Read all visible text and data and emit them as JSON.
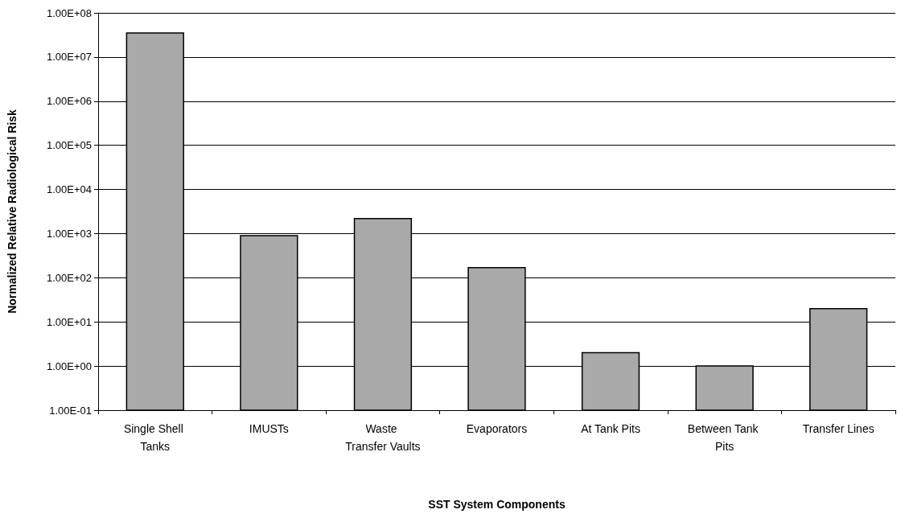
{
  "chart_data": {
    "type": "bar",
    "xlabel": "SST System Components",
    "ylabel": "Normalized Relative Radiological Risk",
    "categories": [
      "Single Shell Tanks",
      "IMUSTs",
      "Waste Transfer Vaults",
      "Evaporators",
      "At Tank Pits",
      "Between Tank Pits",
      "Transfer Lines"
    ],
    "values": [
      35000000,
      900,
      2200,
      170,
      2,
      1,
      20
    ],
    "color": "#a9a9a9",
    "log": true,
    "ylim": [
      0.1,
      100000000
    ],
    "yticks": [
      {
        "value": 0.1,
        "label": "1.00E-01"
      },
      {
        "value": 1,
        "label": "1.00E+00"
      },
      {
        "value": 10,
        "label": "1.00E+01"
      },
      {
        "value": 100,
        "label": "1.00E+02"
      },
      {
        "value": 1000,
        "label": "1.00E+03"
      },
      {
        "value": 10000,
        "label": "1.00E+04"
      },
      {
        "value": 100000,
        "label": "1.00E+05"
      },
      {
        "value": 1000000,
        "label": "1.00E+06"
      },
      {
        "value": 10000000,
        "label": "1.00E+07"
      },
      {
        "value": 100000000,
        "label": "1.00E+08"
      }
    ],
    "grid": "y"
  }
}
